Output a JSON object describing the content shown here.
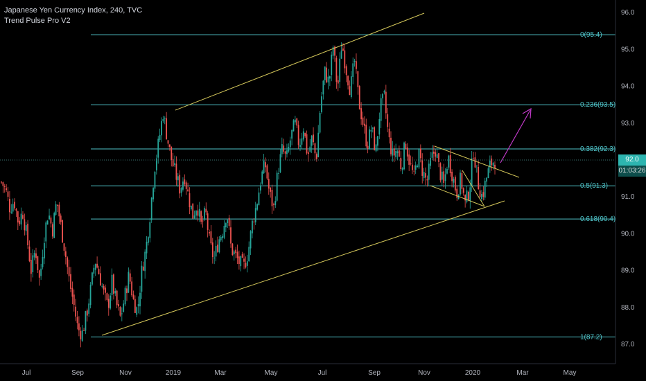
{
  "legend": {
    "symbol_line": "Japanese Yen Currency Index, 240, TVC",
    "indicator_line": "Trend Pulse Pro V2"
  },
  "chart_data": {
    "type": "candlestick",
    "y_axis": {
      "ticks": [
        87.0,
        88.0,
        89.0,
        90.0,
        91.0,
        92.0,
        93.0,
        94.0,
        95.0,
        96.0
      ],
      "range": [
        86.5,
        96.4
      ]
    },
    "x_axis": {
      "ticks": [
        "Jul",
        "Sep",
        "Nov",
        "2019",
        "Mar",
        "May",
        "Jul",
        "Sep",
        "Nov",
        "2020",
        "Mar",
        "May"
      ]
    },
    "fib_levels": [
      {
        "label": "0(95.4)",
        "value": 95.4
      },
      {
        "label": "0.236(93.5)",
        "value": 93.5
      },
      {
        "label": "0.382(92.3)",
        "value": 92.3
      },
      {
        "label": "0.5(91.3)",
        "value": 91.3
      },
      {
        "label": "0.618(90.4)",
        "value": 90.4
      },
      {
        "label": "1(87.2)",
        "value": 87.2
      }
    ],
    "last_price": "92.0",
    "countdown": "01:03:26",
    "price_path": [
      [
        91.4,
        91.2,
        90.7,
        90.9,
        90.3,
        90.6,
        89.9,
        89.0,
        89.6,
        88.7,
        89.9,
        90.6,
        90.1,
        90.9,
        90.2,
        89.5,
        88.7,
        88.1,
        87.4,
        87.3
      ],
      [
        87.8,
        88.5,
        89.3,
        88.9,
        88.4,
        88.0,
        88.7,
        88.1,
        87.7,
        88.3,
        88.9,
        88.2,
        87.9,
        89.0,
        89.6,
        90.6,
        91.8,
        92.5,
        93.3,
        92.6
      ],
      [
        92.0,
        91.6,
        91.2,
        91.6,
        91.0,
        90.5,
        90.8,
        90.2,
        90.6,
        89.7,
        89.3,
        89.8,
        90.1,
        90.6,
        89.6,
        89.4,
        89.2,
        89.1,
        89.5,
        90.3
      ],
      [
        90.8,
        91.5,
        91.9,
        91.1,
        90.7,
        91.7,
        92.3,
        92.0,
        92.6,
        93.0,
        92.4,
        92.9,
        92.1,
        92.6,
        92.0,
        93.5,
        94.4,
        94.1,
        95.1,
        93.9
      ],
      [
        95.2,
        94.5,
        93.9,
        94.7,
        93.6,
        93.0,
        92.4,
        92.9,
        92.2,
        93.4,
        93.7,
        92.6,
        92.1,
        92.3,
        91.8,
        92.5,
        91.9,
        91.5,
        92.2,
        91.7
      ],
      [
        91.4,
        92.0,
        92.3,
        91.7,
        91.3,
        92.1,
        91.6,
        91.1,
        91.5,
        90.8,
        91.2,
        92.3,
        91.4,
        91.0,
        91.5,
        91.9,
        92.0
      ]
    ],
    "colors": {
      "up": "#26a69a",
      "down": "#ef5350",
      "fib": "#4fc3c8",
      "trend": "#d4c75a",
      "arrow": "#c23ac9"
    }
  }
}
